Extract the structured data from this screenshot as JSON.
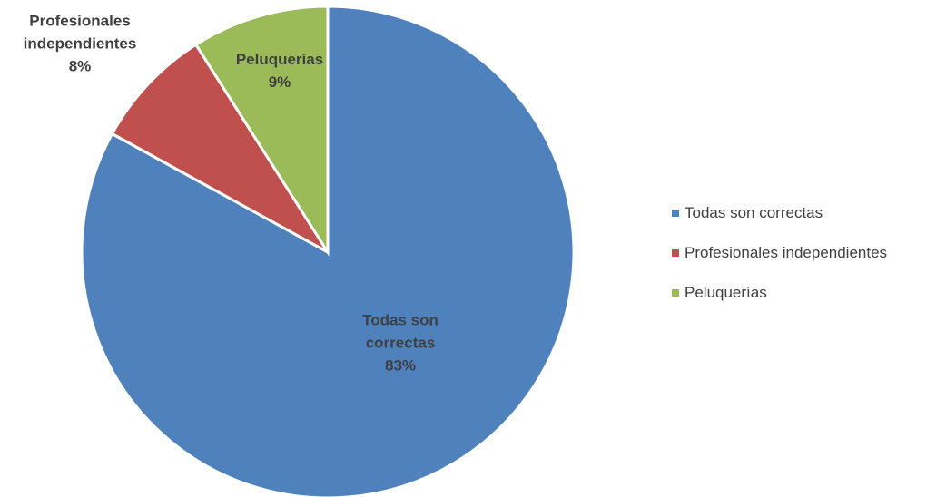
{
  "chart_data": {
    "type": "pie",
    "categories": [
      "Todas son correctas",
      "Profesionales independientes",
      "Peluquerías"
    ],
    "values": [
      83,
      8,
      9
    ],
    "value_labels": [
      "83%",
      "8%",
      "9%"
    ],
    "colors": [
      "#4f81bd",
      "#c0504d",
      "#9bbb59"
    ],
    "legend": "right"
  }
}
